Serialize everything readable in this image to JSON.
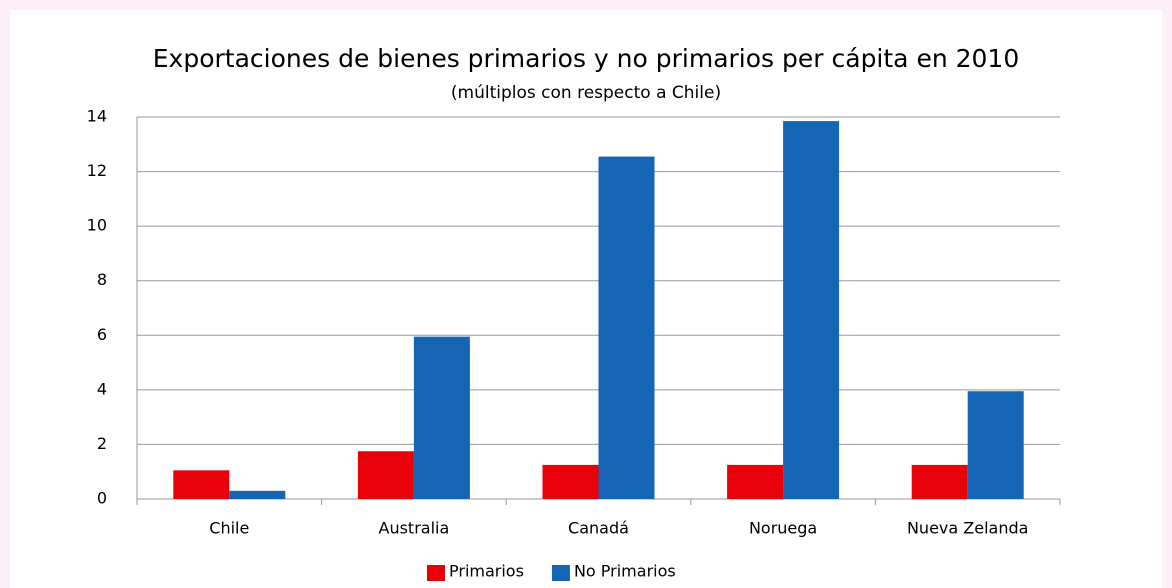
{
  "chart_data": {
    "type": "bar",
    "title": "Exportaciones de bienes primarios y no primarios per cápita en 2010",
    "subtitle": "(múltiplos con respecto a Chile)",
    "categories": [
      "Chile",
      "Australia",
      "Canadá",
      "Noruega",
      "Nueva Zelanda"
    ],
    "series": [
      {
        "name": "Primarios",
        "color": "#e8000b",
        "values": [
          1.05,
          1.75,
          1.25,
          1.25,
          1.25
        ]
      },
      {
        "name": "No Primarios",
        "color": "#1565b4",
        "values": [
          0.3,
          5.95,
          12.55,
          13.85,
          3.95
        ]
      }
    ],
    "ylim": [
      0,
      14
    ],
    "yticks": [
      0,
      2,
      4,
      6,
      8,
      10,
      12,
      14
    ],
    "grid": true,
    "legend": "bottom"
  }
}
